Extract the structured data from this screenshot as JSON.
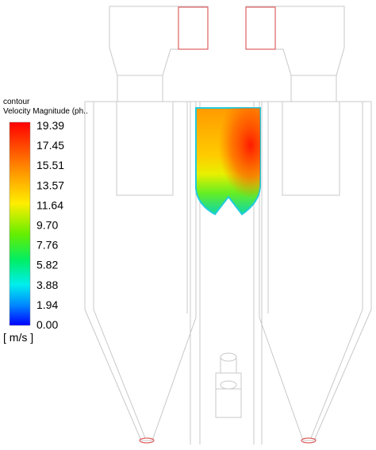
{
  "legend": {
    "title": "contour",
    "subtitle": "Velocity Magnitude (ph..",
    "ticks": [
      "19.39",
      "17.45",
      "15.51",
      "13.57",
      "11.64",
      "9.70",
      "7.76",
      "5.82",
      "3.88",
      "1.94",
      "0.00"
    ],
    "unit": "[ m/s ]"
  }
}
